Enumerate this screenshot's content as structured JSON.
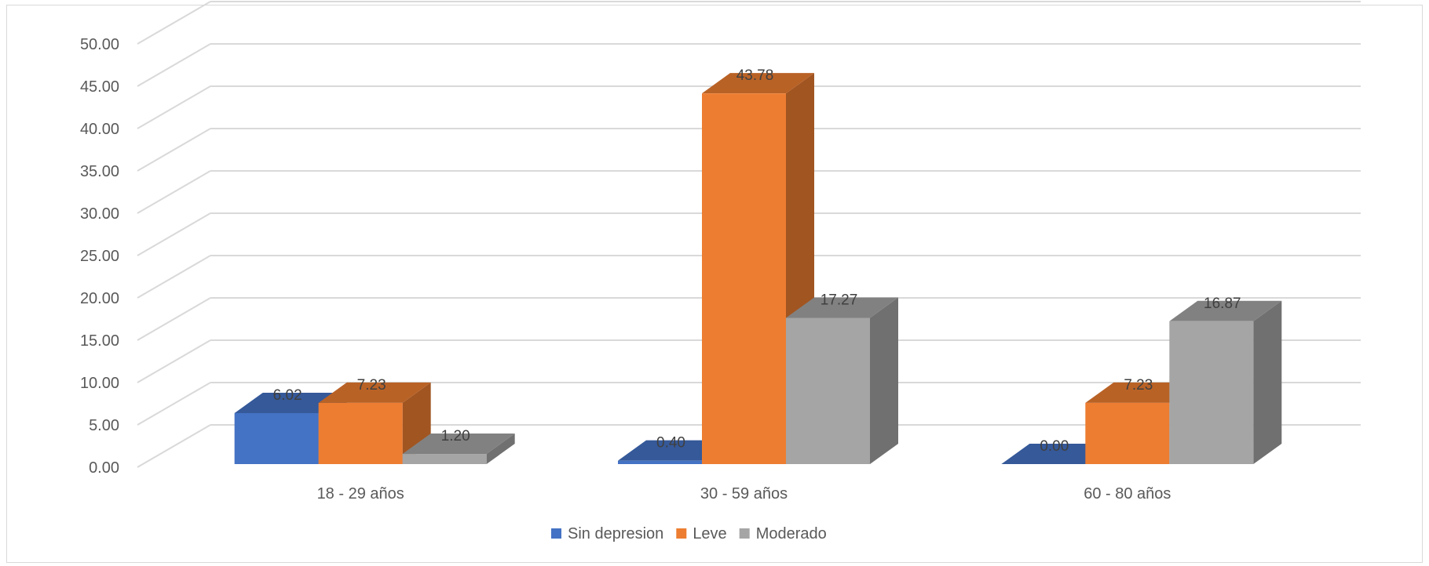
{
  "chart_data": {
    "type": "bar",
    "categories": [
      "18 - 29 años",
      "30 - 59 años",
      "60 - 80 años"
    ],
    "series": [
      {
        "name": "Sin depresion",
        "values": [
          6.02,
          0.4,
          0.0
        ],
        "color": "#4472c4",
        "label_values": [
          "6.02",
          "0.40",
          "0.00"
        ]
      },
      {
        "name": "Leve",
        "values": [
          7.23,
          43.78,
          7.23
        ],
        "color": "#ed7d31",
        "label_values": [
          "7.23",
          "43.78",
          "7.23"
        ]
      },
      {
        "name": "Moderado",
        "values": [
          1.2,
          17.27,
          16.87
        ],
        "color": "#a5a5a5",
        "label_values": [
          "1.20",
          "17.27",
          "16.87"
        ]
      }
    ],
    "y_ticks": [
      "0.00",
      "5.00",
      "10.00",
      "15.00",
      "20.00",
      "25.00",
      "30.00",
      "35.00",
      "40.00",
      "45.00",
      "50.00"
    ],
    "y_tick_values": [
      0,
      5,
      10,
      15,
      20,
      25,
      30,
      35,
      40,
      45,
      50
    ],
    "ylim": [
      0,
      50
    ],
    "grid": true,
    "three_d": true,
    "legend_position": "bottom",
    "title": "",
    "xlabel": "",
    "ylabel": ""
  }
}
